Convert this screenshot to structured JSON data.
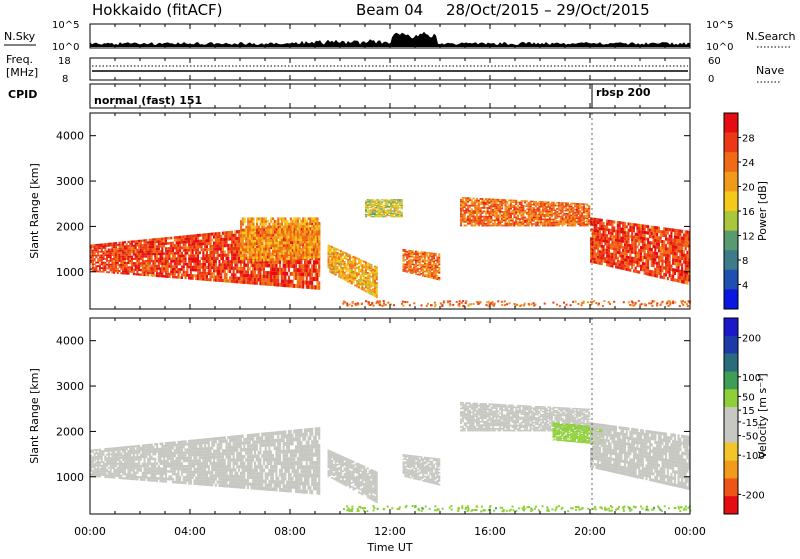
{
  "header": {
    "station": "Hokkaido (fitACF)",
    "beam": "Beam 04",
    "date_range": "28/Oct/2015 – 29/Oct/2015"
  },
  "panels": {
    "nsky": {
      "label": "N.Sky",
      "left_ticks": [
        "10^5",
        "10^0"
      ],
      "right_ticks": [
        "10^5",
        "10^0"
      ],
      "right_label": "N.Search"
    },
    "freq": {
      "label_line1": "Freq.",
      "label_line2": "[MHz]",
      "left_ticks": [
        "18",
        "8"
      ],
      "right_ticks": [
        "60",
        "0"
      ],
      "right_label": "Nave"
    },
    "cpid": {
      "label": "CPID",
      "modes": [
        "normal (fast) 151",
        "rbsp 200"
      ]
    }
  },
  "colors": {
    "power_scale": [
      "#0a17e0",
      "#1f4fb0",
      "#3d7a8a",
      "#5a9a70",
      "#a9c73c",
      "#f4c919",
      "#f29a1c",
      "#f06a17",
      "#ec3815",
      "#e60d12"
    ],
    "velocity_scale": [
      "#e60d12",
      "#f05518",
      "#f29a1c",
      "#f2c62a",
      "#c8c8c2",
      "#c8c8c2",
      "#8fd03a",
      "#3f9e55",
      "#2a6c7c",
      "#1e3aa8",
      "#1a18c8"
    ],
    "ground_scatter": "#c8c8c2"
  },
  "chart_data": [
    {
      "type": "heatmap",
      "name": "power",
      "title": "Hokkaido (fitACF)",
      "xlabel": "",
      "ylabel": "Slant Range [km]",
      "x_ticks": [
        "00:00",
        "04:00",
        "08:00",
        "12:00",
        "16:00",
        "20:00",
        "00:00"
      ],
      "x_range_hours": [
        0,
        24
      ],
      "y_ticks": [
        1000,
        2000,
        3000,
        4000
      ],
      "ylim": [
        180,
        4500
      ],
      "colorbar": {
        "label": "Power [dB]",
        "range": [
          0,
          32
        ],
        "ticks": [
          4,
          8,
          12,
          16,
          20,
          24,
          28
        ]
      },
      "scatter_regions": [
        {
          "t0": 0.0,
          "t1": 9.2,
          "r_lo": [
            1000,
            600
          ],
          "r_hi": [
            1600,
            2100
          ],
          "value": 27
        },
        {
          "t0": 6.0,
          "t1": 9.2,
          "r_lo": [
            1200,
            1300
          ],
          "r_hi": [
            2200,
            2200
          ],
          "value": 21
        },
        {
          "t0": 9.5,
          "t1": 11.5,
          "r_lo": [
            1000,
            400
          ],
          "r_hi": [
            1600,
            1100
          ],
          "value": 20
        },
        {
          "t0": 11.0,
          "t1": 12.5,
          "r_lo": [
            2200,
            2200
          ],
          "r_hi": [
            2600,
            2600
          ],
          "value": 16
        },
        {
          "t0": 12.5,
          "t1": 14.0,
          "r_lo": [
            1000,
            800
          ],
          "r_hi": [
            1500,
            1400
          ],
          "value": 24
        },
        {
          "t0": 14.8,
          "t1": 20.0,
          "r_lo": [
            2000,
            2000
          ],
          "r_hi": [
            2650,
            2500
          ],
          "value": 24
        },
        {
          "t0": 20.0,
          "t1": 24.0,
          "r_lo": [
            1200,
            700
          ],
          "r_hi": [
            2200,
            1900
          ],
          "value": 27
        }
      ]
    },
    {
      "type": "heatmap",
      "name": "velocity",
      "xlabel": "Time UT",
      "ylabel": "Slant Range [km]",
      "x_ticks": [
        "00:00",
        "04:00",
        "08:00",
        "12:00",
        "16:00",
        "20:00",
        "00:00"
      ],
      "x_range_hours": [
        0,
        24
      ],
      "y_ticks": [
        1000,
        2000,
        3000,
        4000
      ],
      "ylim": [
        180,
        4500
      ],
      "colorbar": {
        "label": "Velocity [m s⁻¹]",
        "range": [
          -250,
          250
        ],
        "ticks": [
          -200,
          -100,
          -50,
          -15,
          15,
          50,
          100,
          200
        ]
      },
      "scatter_regions": [
        {
          "t0": 0.0,
          "t1": 9.2,
          "r_lo": [
            1000,
            600
          ],
          "r_hi": [
            1600,
            2100
          ],
          "value": 0
        },
        {
          "t0": 9.5,
          "t1": 11.5,
          "r_lo": [
            1000,
            400
          ],
          "r_hi": [
            1600,
            1100
          ],
          "value": 0
        },
        {
          "t0": 12.5,
          "t1": 14.0,
          "r_lo": [
            1000,
            800
          ],
          "r_hi": [
            1500,
            1400
          ],
          "value": 0
        },
        {
          "t0": 14.8,
          "t1": 20.0,
          "r_lo": [
            2000,
            2000
          ],
          "r_hi": [
            2650,
            2500
          ],
          "value": 0
        },
        {
          "t0": 18.5,
          "t1": 20.5,
          "r_lo": [
            1800,
            1700
          ],
          "r_hi": [
            2200,
            2100
          ],
          "value": 40
        },
        {
          "t0": 20.0,
          "t1": 24.0,
          "r_lo": [
            1200,
            700
          ],
          "r_hi": [
            2200,
            1900
          ],
          "value": 0
        }
      ]
    }
  ]
}
